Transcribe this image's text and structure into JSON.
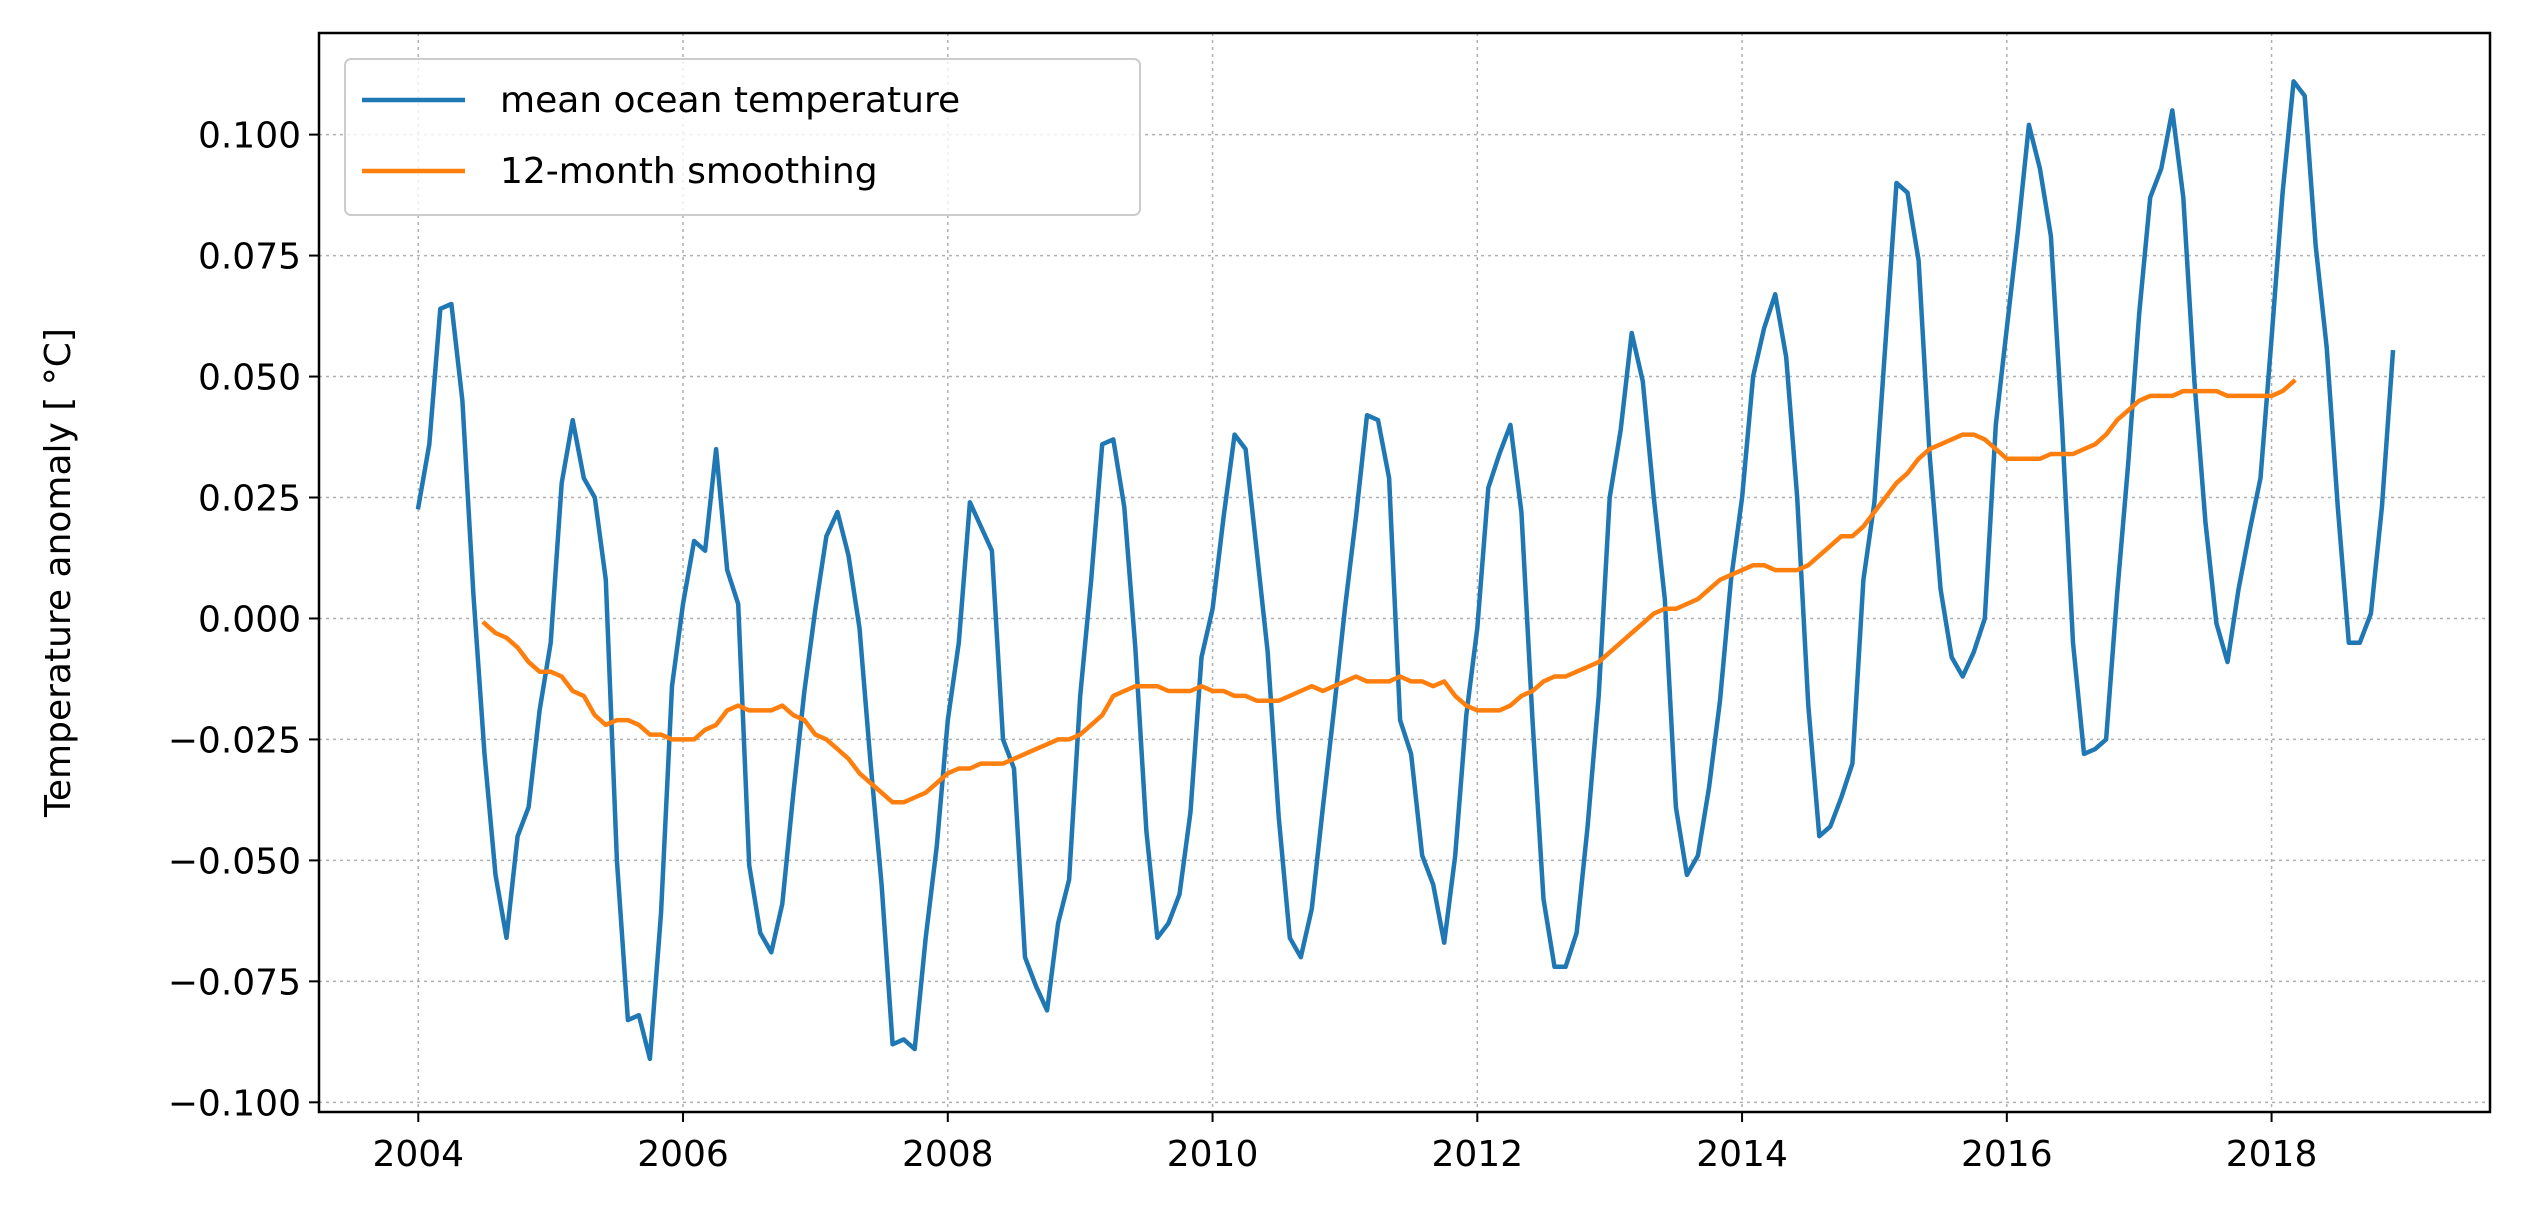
{
  "chart_data": {
    "type": "line",
    "title": "",
    "xlabel": "",
    "ylabel": "Temperature anomaly [ °C]",
    "xlim": [
      2003.25,
      2019.65
    ],
    "ylim": [
      -0.102,
      0.121
    ],
    "grid": true,
    "legend_position": "top-left",
    "x_ticks": [
      2004,
      2006,
      2008,
      2010,
      2012,
      2014,
      2016,
      2018
    ],
    "x_tick_labels": [
      "2004",
      "2006",
      "2008",
      "2010",
      "2012",
      "2014",
      "2016",
      "2018"
    ],
    "y_ticks": [
      0.1,
      0.075,
      0.05,
      0.025,
      0.0,
      -0.025,
      -0.05,
      -0.075,
      -0.1
    ],
    "y_tick_labels": [
      "0.100",
      "0.075",
      "0.050",
      "0.025",
      "0.000",
      "−0.025",
      "−0.050",
      "−0.075",
      "−0.100"
    ],
    "series": [
      {
        "name": "mean ocean temperature",
        "color": "#1f77b4",
        "x_start": 2004.0,
        "x_step": 0.08333333,
        "values": [
          0.023,
          0.036,
          0.064,
          0.065,
          0.045,
          0.005,
          -0.028,
          -0.053,
          -0.066,
          -0.045,
          -0.039,
          -0.019,
          -0.005,
          0.028,
          0.041,
          0.029,
          0.025,
          0.008,
          -0.05,
          -0.083,
          -0.082,
          -0.091,
          -0.061,
          -0.014,
          0.003,
          0.016,
          0.014,
          0.035,
          0.01,
          0.003,
          -0.051,
          -0.065,
          -0.069,
          -0.059,
          -0.036,
          -0.015,
          0.002,
          0.017,
          0.022,
          0.013,
          -0.002,
          -0.03,
          -0.055,
          -0.088,
          -0.087,
          -0.089,
          -0.066,
          -0.047,
          -0.021,
          -0.005,
          0.024,
          0.019,
          0.014,
          -0.025,
          -0.031,
          -0.07,
          -0.076,
          -0.081,
          -0.063,
          -0.054,
          -0.016,
          0.008,
          0.036,
          0.037,
          0.023,
          -0.006,
          -0.044,
          -0.066,
          -0.063,
          -0.057,
          -0.04,
          -0.008,
          0.002,
          0.021,
          0.038,
          0.035,
          0.014,
          -0.007,
          -0.041,
          -0.066,
          -0.07,
          -0.06,
          -0.039,
          -0.019,
          0.002,
          0.021,
          0.042,
          0.041,
          0.029,
          -0.021,
          -0.028,
          -0.049,
          -0.055,
          -0.067,
          -0.049,
          -0.02,
          -0.002,
          0.027,
          0.034,
          0.04,
          0.022,
          -0.021,
          -0.058,
          -0.072,
          -0.072,
          -0.065,
          -0.043,
          -0.016,
          0.025,
          0.039,
          0.059,
          0.049,
          0.025,
          0.004,
          -0.039,
          -0.053,
          -0.049,
          -0.035,
          -0.017,
          0.008,
          0.025,
          0.05,
          0.06,
          0.067,
          0.054,
          0.025,
          -0.018,
          -0.045,
          -0.043,
          -0.037,
          -0.03,
          0.008,
          0.024,
          0.057,
          0.09,
          0.088,
          0.074,
          0.034,
          0.006,
          -0.008,
          -0.012,
          -0.007,
          0.0,
          0.04,
          0.06,
          0.08,
          0.102,
          0.093,
          0.079,
          0.04,
          -0.005,
          -0.028,
          -0.027,
          -0.025,
          0.005,
          0.032,
          0.063,
          0.087,
          0.093,
          0.105,
          0.087,
          0.049,
          0.02,
          -0.001,
          -0.009,
          0.006,
          0.018,
          0.029,
          0.058,
          0.088,
          0.111,
          0.108,
          0.077,
          0.056,
          0.023,
          -0.005,
          -0.005,
          0.001,
          0.023,
          0.055
        ]
      },
      {
        "name": "12-month smoothing",
        "color": "#ff7f0e",
        "x_start": 2004.5,
        "x_step": 0.08333333,
        "values": [
          -0.001,
          -0.003,
          -0.004,
          -0.006,
          -0.009,
          -0.011,
          -0.011,
          -0.012,
          -0.015,
          -0.016,
          -0.02,
          -0.022,
          -0.021,
          -0.021,
          -0.022,
          -0.024,
          -0.024,
          -0.025,
          -0.025,
          -0.025,
          -0.023,
          -0.022,
          -0.019,
          -0.018,
          -0.019,
          -0.019,
          -0.019,
          -0.018,
          -0.02,
          -0.021,
          -0.024,
          -0.025,
          -0.027,
          -0.029,
          -0.032,
          -0.034,
          -0.036,
          -0.038,
          -0.038,
          -0.037,
          -0.036,
          -0.034,
          -0.032,
          -0.031,
          -0.031,
          -0.03,
          -0.03,
          -0.03,
          -0.029,
          -0.028,
          -0.027,
          -0.026,
          -0.025,
          -0.025,
          -0.024,
          -0.022,
          -0.02,
          -0.016,
          -0.015,
          -0.014,
          -0.014,
          -0.014,
          -0.015,
          -0.015,
          -0.015,
          -0.014,
          -0.015,
          -0.015,
          -0.016,
          -0.016,
          -0.017,
          -0.017,
          -0.017,
          -0.016,
          -0.015,
          -0.014,
          -0.015,
          -0.014,
          -0.013,
          -0.012,
          -0.013,
          -0.013,
          -0.013,
          -0.012,
          -0.013,
          -0.013,
          -0.014,
          -0.013,
          -0.016,
          -0.018,
          -0.019,
          -0.019,
          -0.019,
          -0.018,
          -0.016,
          -0.015,
          -0.013,
          -0.012,
          -0.012,
          -0.011,
          -0.01,
          -0.009,
          -0.007,
          -0.005,
          -0.003,
          -0.001,
          0.001,
          0.002,
          0.002,
          0.003,
          0.004,
          0.006,
          0.008,
          0.009,
          0.01,
          0.011,
          0.011,
          0.01,
          0.01,
          0.01,
          0.011,
          0.013,
          0.015,
          0.017,
          0.017,
          0.019,
          0.022,
          0.025,
          0.028,
          0.03,
          0.033,
          0.035,
          0.036,
          0.037,
          0.038,
          0.038,
          0.037,
          0.035,
          0.033,
          0.033,
          0.033,
          0.033,
          0.034,
          0.034,
          0.034,
          0.035,
          0.036,
          0.038,
          0.041,
          0.043,
          0.045,
          0.046,
          0.046,
          0.046,
          0.047,
          0.047,
          0.047,
          0.047,
          0.046,
          0.046,
          0.046,
          0.046,
          0.046,
          0.047,
          0.049
        ]
      }
    ]
  }
}
